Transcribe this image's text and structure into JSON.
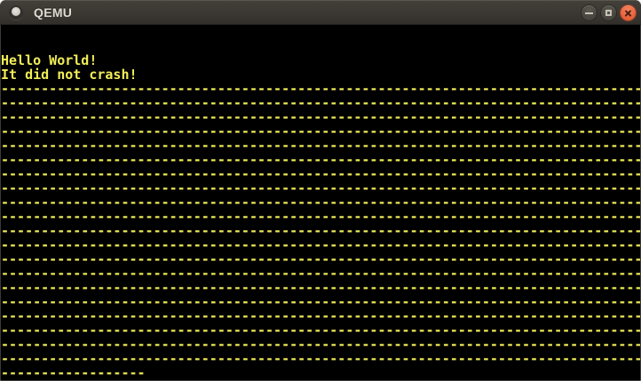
{
  "window": {
    "title": "QEMU",
    "icon": "qemu-logo",
    "controls": {
      "minimize": "minimize",
      "maximize": "maximize",
      "close": "close"
    }
  },
  "colors": {
    "titlebar_bg": "#3b3833",
    "titlebar_text": "#dfdbd3",
    "close_button_orange": "#e9633c",
    "button_gray": "#4a4741",
    "screen_bg": "#000000",
    "vga_text_yellow": "#f1ee58"
  },
  "screen": {
    "grid": {
      "columns": 80,
      "rows": 25
    },
    "lines": [
      "",
      "",
      "Hello World!",
      "It did not crash!",
      "--------------------------------------------------------------------------------",
      "--------------------------------------------------------------------------------",
      "--------------------------------------------------------------------------------",
      "--------------------------------------------------------------------------------",
      "--------------------------------------------------------------------------------",
      "--------------------------------------------------------------------------------",
      "--------------------------------------------------------------------------------",
      "--------------------------------------------------------------------------------",
      "--------------------------------------------------------------------------------",
      "--------------------------------------------------------------------------------",
      "--------------------------------------------------------------------------------",
      "--------------------------------------------------------------------------------",
      "--------------------------------------------------------------------------------",
      "--------------------------------------------------------------------------------",
      "--------------------------------------------------------------------------------",
      "--------------------------------------------------------------------------------",
      "--------------------------------------------------------------------------------",
      "--------------------------------------------------------------------------------",
      "--------------------------------------------------------------------------------",
      "--------------------------------------------------------------------------------",
      "------------------"
    ]
  }
}
